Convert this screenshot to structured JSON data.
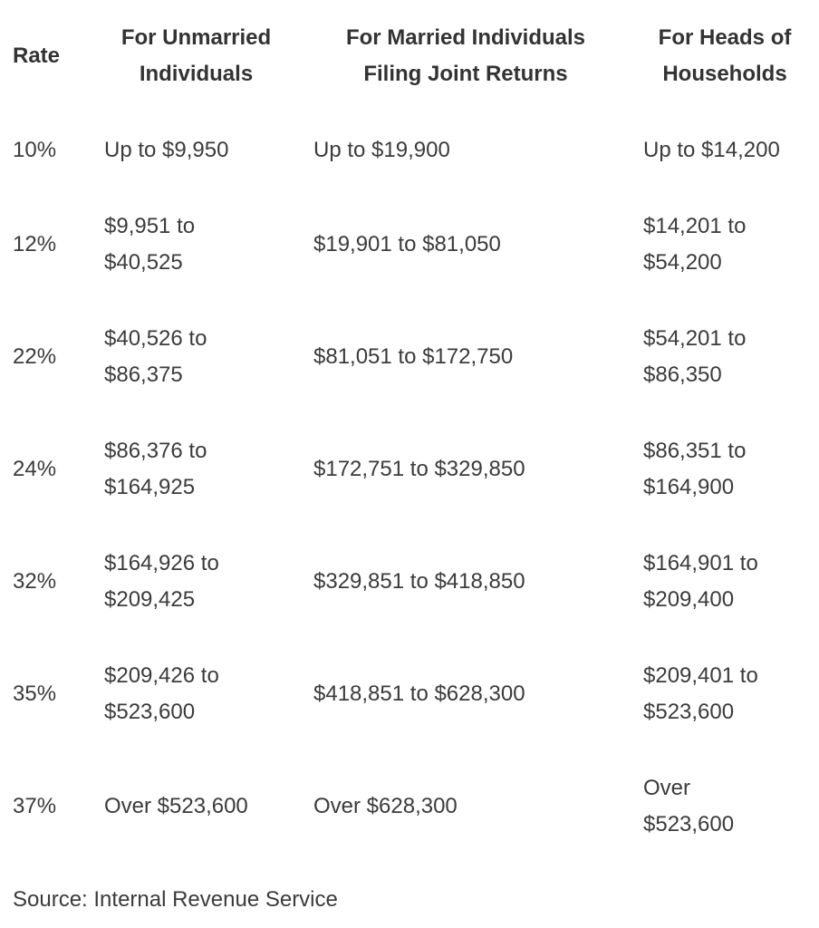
{
  "chart_data": {
    "type": "table",
    "title": "",
    "columns": [
      "Rate",
      "For Unmarried Individuals",
      "For Married Individuals Filing Joint Returns",
      "For Heads of Households"
    ],
    "rows": [
      [
        "10%",
        "Up to $9,950",
        "Up to $19,900",
        "Up to $14,200"
      ],
      [
        "12%",
        "$9,951 to $40,525",
        "$19,901 to $81,050",
        "$14,201 to $54,200"
      ],
      [
        "22%",
        "$40,526 to $86,375",
        "$81,051 to $172,750",
        "$54,201 to $86,350"
      ],
      [
        "24%",
        "$86,376 to $164,925",
        "$172,751 to $329,850",
        "$86,351 to $164,900"
      ],
      [
        "32%",
        "$164,926 to $209,425",
        "$329,851 to $418,850",
        "$164,901 to $209,400"
      ],
      [
        "35%",
        "$209,426 to $523,600",
        "$418,851 to $628,300",
        "$209,401 to $523,600"
      ],
      [
        "37%",
        "Over $523,600",
        "Over $628,300",
        "Over $523,600"
      ]
    ],
    "source": "Source: Internal Revenue Service"
  },
  "display": {
    "header": {
      "rate": "Rate",
      "single": "For Unmarried\nIndividuals",
      "joint": "For Married Individuals\nFiling Joint Returns",
      "hoh": "For Heads of\nHouseholds"
    },
    "rows": [
      {
        "rate": "10%",
        "single": "Up to $9,950",
        "joint": "Up to $19,900",
        "hoh": "Up to $14,200"
      },
      {
        "rate": "12%",
        "single": "$9,951 to\n$40,525",
        "joint": "$19,901 to $81,050",
        "hoh": "$14,201 to\n$54,200"
      },
      {
        "rate": "22%",
        "single": "$40,526 to\n$86,375",
        "joint": "$81,051 to $172,750",
        "hoh": "$54,201 to\n$86,350"
      },
      {
        "rate": "24%",
        "single": "$86,376 to\n$164,925",
        "joint": "$172,751 to $329,850",
        "hoh": "$86,351 to\n$164,900"
      },
      {
        "rate": "32%",
        "single": "$164,926 to\n$209,425",
        "joint": "$329,851 to $418,850",
        "hoh": "$164,901 to\n$209,400"
      },
      {
        "rate": "35%",
        "single": "$209,426 to\n$523,600",
        "joint": "$418,851 to $628,300",
        "hoh": "$209,401 to\n$523,600"
      },
      {
        "rate": "37%",
        "single": "Over $523,600",
        "joint": "Over $628,300",
        "hoh": "Over\n$523,600"
      }
    ],
    "source": "Source: Internal Revenue Service"
  },
  "colors": {
    "background": "#ffffff",
    "header_text": "#333333",
    "body_text": "#3b3b3b"
  }
}
